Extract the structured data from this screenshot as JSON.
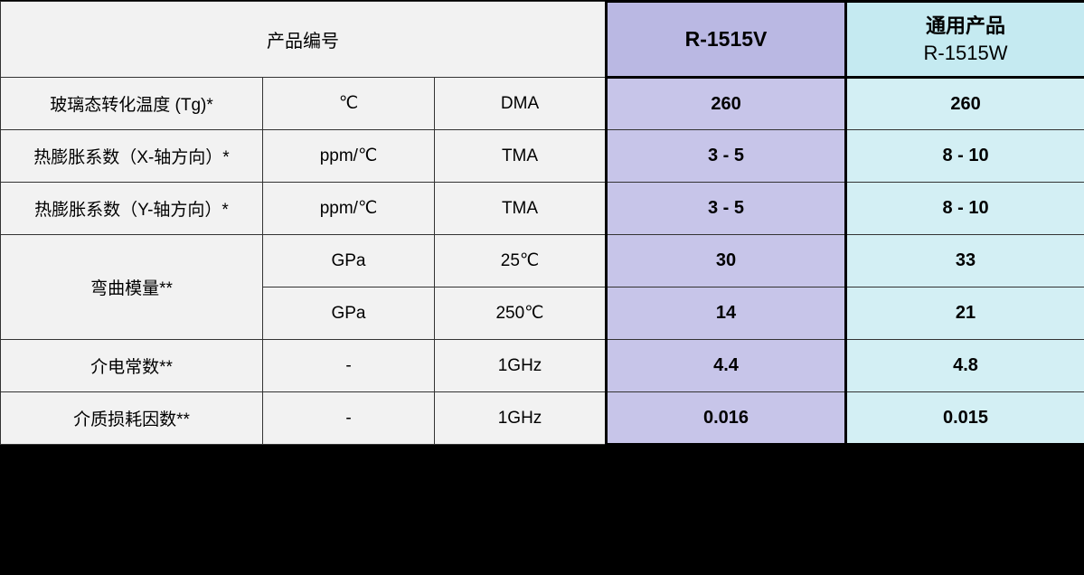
{
  "colors": {
    "page_bg": "#000000",
    "cell_bg": "#f2f2f2",
    "border": "#333333",
    "heavy_border": "#000000",
    "col_r_header_bg": "#bab8e3",
    "col_r_body_bg": "#c7c5e9",
    "col_c_header_bg": "#c5eaf1",
    "col_c_body_bg": "#d3eff4",
    "text": "#000000"
  },
  "header": {
    "label": "产品编号",
    "r": "R-1515V",
    "c_line1": "通用产品",
    "c_line2": "R-1515W"
  },
  "rows": [
    {
      "prop": "玻璃态转化温度 (Tg)*",
      "unit": "℃",
      "cond": "DMA",
      "r": "260",
      "c": "260"
    },
    {
      "prop": "热膨胀系数（X-轴方向）*",
      "unit": "ppm/℃",
      "cond": "TMA",
      "r": "3 - 5",
      "c": "8 - 10"
    },
    {
      "prop": "热膨胀系数（Y-轴方向）*",
      "unit": "ppm/℃",
      "cond": "TMA",
      "r": "3 - 5",
      "c": "8 - 10"
    },
    {
      "prop": "弯曲模量**",
      "unit": "GPa",
      "cond": "25℃",
      "r": "30",
      "c": "33"
    },
    {
      "prop": "",
      "unit": "GPa",
      "cond": "250℃",
      "r": "14",
      "c": "21"
    },
    {
      "prop": "介电常数**",
      "unit": "-",
      "cond": "1GHz",
      "r": "4.4",
      "c": "4.8"
    },
    {
      "prop": "介质损耗因数**",
      "unit": "-",
      "cond": "1GHz",
      "r": "0.016",
      "c": "0.015"
    }
  ]
}
